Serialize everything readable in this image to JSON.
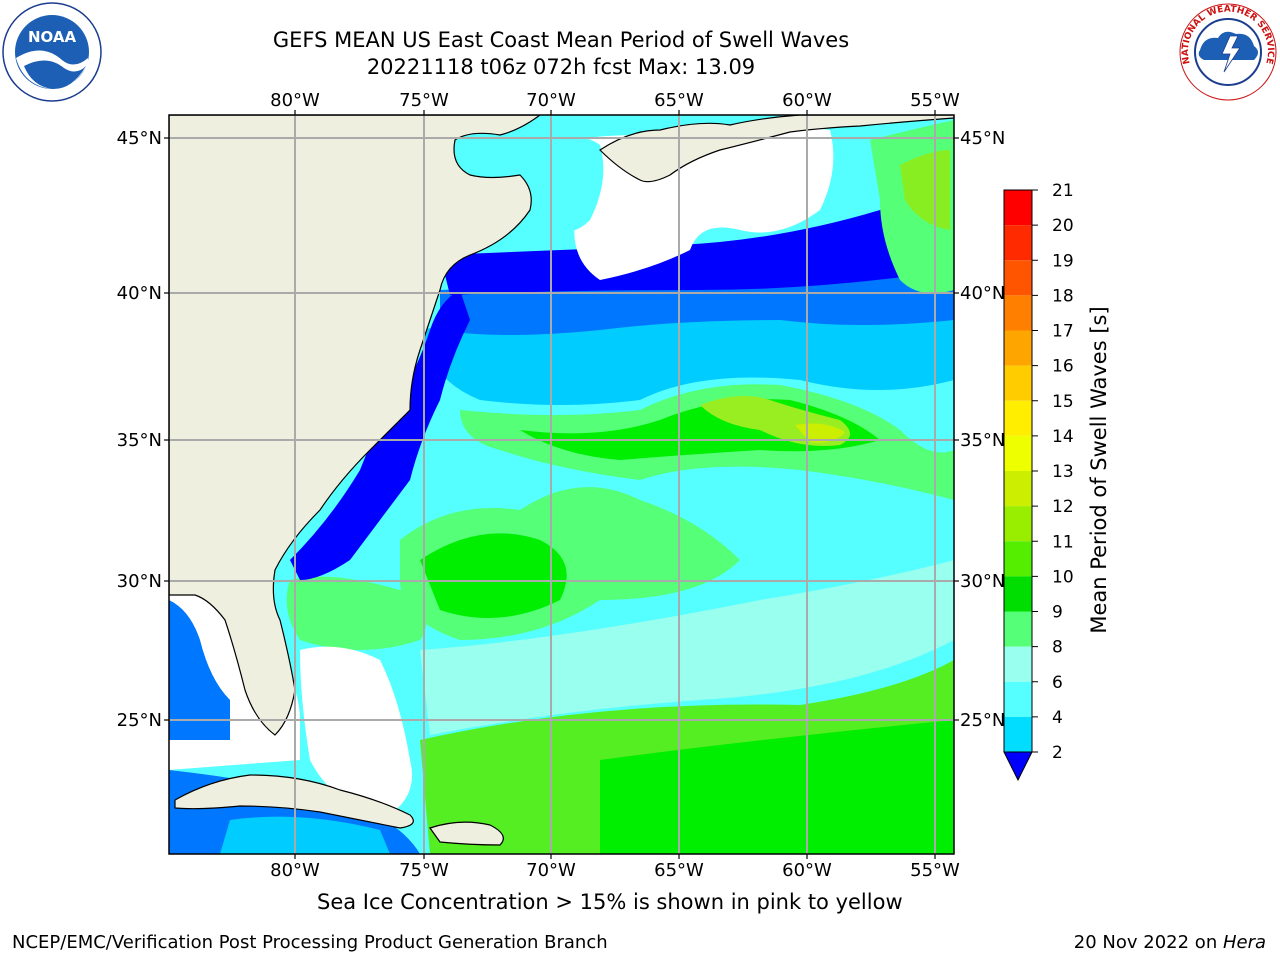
{
  "header": {
    "title_line1": "GEFS MEAN US East Coast Mean Period of Swell Waves",
    "title_line2": "20221118 t06z 072h fcst   Max: 13.09"
  },
  "map": {
    "lon_labels": [
      "80°W",
      "75°W",
      "70°W",
      "65°W",
      "60°W",
      "55°W"
    ],
    "lat_labels": [
      "45°N",
      "40°N",
      "35°N",
      "30°N",
      "25°N"
    ],
    "ocean_colors": {
      "c2_4": "#0000ff",
      "c4_6": "#0077ff",
      "c6_8": "#00ccff",
      "c8_9": "#55ffff",
      "c9_10": "#99ffee",
      "c10_11": "#55ff77",
      "c11_12": "#00ee00",
      "c12_13": "#88ee22",
      "c13_14": "#ccee00",
      "land": "#efefdf",
      "grid": "#aaaaaa"
    }
  },
  "colorbar": {
    "label": "Mean Period of Swell Waves [s]",
    "ticks": [
      "21",
      "20",
      "19",
      "18",
      "17",
      "16",
      "15",
      "14",
      "13",
      "12",
      "11",
      "10",
      "9",
      "8",
      "6",
      "4",
      "2"
    ],
    "colors": [
      "#ff0000",
      "#ff2a00",
      "#ff5500",
      "#ff8000",
      "#ffa500",
      "#ffcc00",
      "#ffee00",
      "#eeff00",
      "#ccee00",
      "#99ee00",
      "#55ee00",
      "#00dd00",
      "#55ff77",
      "#99ffee",
      "#55ffff",
      "#00ddff",
      "#0077ff",
      "#0000ff"
    ]
  },
  "note": "Sea Ice Concentration > 15% is shown in pink to yellow",
  "footer": {
    "left": "NCEP/EMC/Verification Post Processing Product Generation Branch",
    "date": "20 Nov 2022 on ",
    "machine": "Hera"
  },
  "logos": {
    "noaa": "noaa-logo",
    "nws": "nws-logo",
    "noaa_text": "NOAA",
    "nws_ring_text": "NATIONAL WEATHER SERVICE"
  }
}
